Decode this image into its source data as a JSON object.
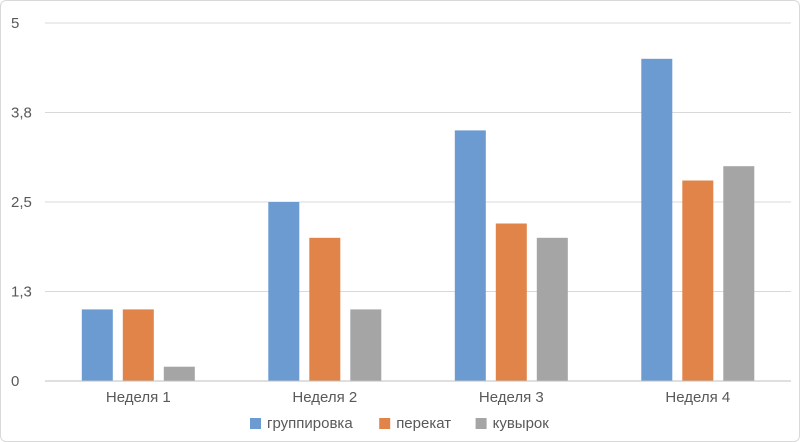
{
  "chart_data": {
    "type": "bar",
    "title": "",
    "xlabel": "",
    "ylabel": "",
    "categories": [
      "Неделя 1",
      "Неделя 2",
      "Неделя 3",
      "Неделя 4"
    ],
    "series": [
      {
        "name": "группировка",
        "color": "#6b9bd1",
        "values": [
          1.0,
          2.5,
          3.5,
          4.5
        ]
      },
      {
        "name": "перекат",
        "color": "#e0844a",
        "values": [
          1.0,
          2.0,
          2.2,
          2.8
        ]
      },
      {
        "name": "кувырок",
        "color": "#a5a5a5",
        "values": [
          0.2,
          1.0,
          2.0,
          3.0
        ]
      }
    ],
    "yticks": [
      0,
      1.25,
      2.5,
      3.75,
      5
    ],
    "ytick_labels": [
      "0",
      "1,3",
      "2,5",
      "3,8",
      "5"
    ],
    "ylim": [
      0,
      5
    ],
    "grid": true,
    "legend_position": "bottom",
    "gridline_color": "#d9d9d9",
    "axis_color": "#bfbfbf"
  }
}
